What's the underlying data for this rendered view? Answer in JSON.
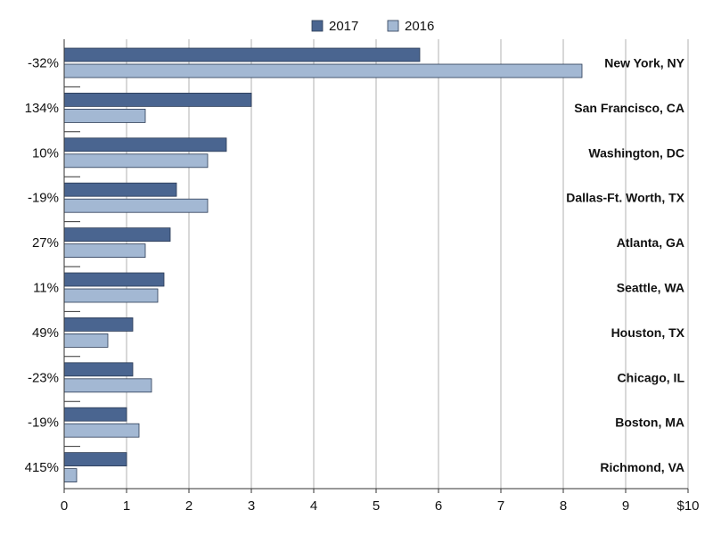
{
  "chart_data": {
    "type": "bar",
    "orientation": "horizontal",
    "categories": [
      "New York, NY",
      "San Francisco, CA",
      "Washington, DC",
      "Dallas-Ft. Worth, TX",
      "Atlanta, GA",
      "Seattle, WA",
      "Houston, TX",
      "Chicago, IL",
      "Boston, MA",
      "Richmond, VA"
    ],
    "change_labels": [
      "-32%",
      "134%",
      "10%",
      "-19%",
      "27%",
      "11%",
      "49%",
      "-23%",
      "-19%",
      "415%"
    ],
    "series": [
      {
        "name": "2017",
        "color": "#4a6590",
        "values": [
          5.7,
          3.0,
          2.6,
          1.8,
          1.7,
          1.6,
          1.1,
          1.1,
          1.0,
          1.0
        ]
      },
      {
        "name": "2016",
        "color": "#a3b8d3",
        "values": [
          8.3,
          1.3,
          2.3,
          2.3,
          1.3,
          1.5,
          0.7,
          1.4,
          1.2,
          0.2
        ]
      }
    ],
    "x_ticks": [
      "0",
      "1",
      "2",
      "3",
      "4",
      "5",
      "6",
      "7",
      "8",
      "9",
      "$10"
    ],
    "xlim": [
      0,
      10
    ],
    "grid": "vertical",
    "legend": "top-center",
    "title": "",
    "xlabel": "",
    "ylabel": ""
  }
}
